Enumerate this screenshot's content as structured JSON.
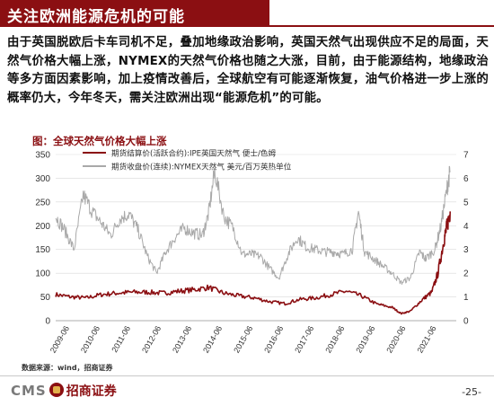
{
  "header": {
    "title": "关注欧洲能源危机的可能"
  },
  "paragraph": "由于英国脱欧后卡车司机不足，叠加地缘政治影响，英国天然气出现供应不足的局面，天然气价格大幅上涨，NYMEX的天然气价格也随之大涨，目前，由于能源结构，地缘政治等多方面因素影响，加上疫情改善后，全球航空有可能逐渐恢复，油气价格进一步上涨的概率仍大，今年冬天，需关注欧洲出现“能源危机”的可能。",
  "chart_data": {
    "type": "line",
    "title": "图：全球天然气价格大幅上涨",
    "x_ticks": [
      "2009-06",
      "2010-06",
      "2011-06",
      "2012-06",
      "2013-06",
      "2014-06",
      "2015-06",
      "2016-06",
      "2017-06",
      "2018-06",
      "2019-06",
      "2020-06",
      "2021-06"
    ],
    "y_left": {
      "ticks": [
        0,
        50,
        100,
        150,
        200,
        250,
        300,
        350
      ],
      "range": [
        0,
        350
      ]
    },
    "y_right": {
      "ticks": [
        0,
        1,
        2,
        3,
        4,
        5,
        6,
        7
      ],
      "range": [
        0,
        7
      ]
    },
    "series": [
      {
        "name": "期货结算价(活跃合约):IPE英国天然气 便士/色姆",
        "axis": "left",
        "color": "#8b0f12",
        "x": [
          2009.0,
          2009.5,
          2010.0,
          2010.5,
          2011.0,
          2011.5,
          2012.0,
          2012.5,
          2013.0,
          2013.5,
          2014.0,
          2014.5,
          2015.0,
          2015.5,
          2016.0,
          2016.5,
          2017.0,
          2017.5,
          2018.0,
          2018.5,
          2019.0,
          2019.5,
          2020.0,
          2020.3,
          2020.6,
          2021.0,
          2021.3,
          2021.5,
          2021.7,
          2021.8,
          2021.9
        ],
        "y": [
          55,
          50,
          48,
          55,
          58,
          60,
          60,
          58,
          62,
          65,
          70,
          58,
          52,
          48,
          40,
          36,
          45,
          48,
          55,
          62,
          52,
          35,
          28,
          15,
          20,
          45,
          60,
          100,
          170,
          200,
          230
        ]
      },
      {
        "name": "期货收盘价(连续):NYMEX天然气 美元/百万英热单位",
        "axis": "right",
        "color": "#a9a9a9",
        "x": [
          2009.0,
          2009.3,
          2009.6,
          2009.9,
          2010.2,
          2010.5,
          2010.8,
          2011.1,
          2011.4,
          2011.7,
          2012.0,
          2012.3,
          2012.6,
          2012.9,
          2013.2,
          2013.5,
          2013.8,
          2014.0,
          2014.2,
          2014.5,
          2014.8,
          2015.1,
          2015.4,
          2015.7,
          2016.0,
          2016.3,
          2016.6,
          2016.9,
          2017.2,
          2017.5,
          2017.8,
          2018.1,
          2018.4,
          2018.7,
          2018.9,
          2019.1,
          2019.4,
          2019.7,
          2020.0,
          2020.3,
          2020.6,
          2020.9,
          2021.1,
          2021.4,
          2021.6,
          2021.8,
          2021.9
        ],
        "y": [
          4.4,
          3.8,
          3.0,
          5.3,
          4.6,
          4.1,
          3.6,
          4.3,
          4.5,
          3.8,
          2.7,
          2.0,
          2.9,
          3.5,
          3.9,
          3.7,
          3.6,
          4.5,
          6.3,
          4.4,
          3.9,
          2.8,
          2.8,
          2.7,
          2.2,
          1.8,
          2.8,
          3.5,
          3.1,
          3.0,
          2.9,
          2.9,
          2.8,
          3.0,
          4.6,
          2.9,
          2.6,
          2.3,
          2.0,
          1.6,
          1.8,
          2.9,
          2.6,
          3.0,
          4.0,
          5.6,
          6.3
        ]
      }
    ],
    "source": "数据来源：wind，招商证券"
  },
  "footer": {
    "brand_en": "CMS",
    "brand_cn": "招商证券",
    "page": "-25-"
  }
}
